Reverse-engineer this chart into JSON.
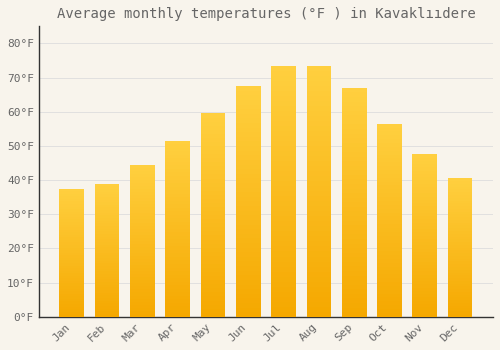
{
  "title": "Average monthly temperatures (°F ) in Kavaklııdere",
  "months": [
    "Jan",
    "Feb",
    "Mar",
    "Apr",
    "May",
    "Jun",
    "Jul",
    "Aug",
    "Sep",
    "Oct",
    "Nov",
    "Dec"
  ],
  "values": [
    37.5,
    39.0,
    44.5,
    51.5,
    59.5,
    67.5,
    73.5,
    73.5,
    67.0,
    56.5,
    47.5,
    40.5
  ],
  "bar_color_bottom": "#F5A800",
  "bar_color_top": "#FFD040",
  "background_color": "#F8F4EC",
  "grid_color": "#DDDDDD",
  "spine_color": "#333333",
  "ylim": [
    0,
    85
  ],
  "yticks": [
    0,
    10,
    20,
    30,
    40,
    50,
    60,
    70,
    80
  ],
  "ytick_labels": [
    "0°F",
    "10°F",
    "20°F",
    "30°F",
    "40°F",
    "50°F",
    "60°F",
    "70°F",
    "80°F"
  ],
  "title_fontsize": 10,
  "tick_fontsize": 8,
  "font_color": "#666666"
}
